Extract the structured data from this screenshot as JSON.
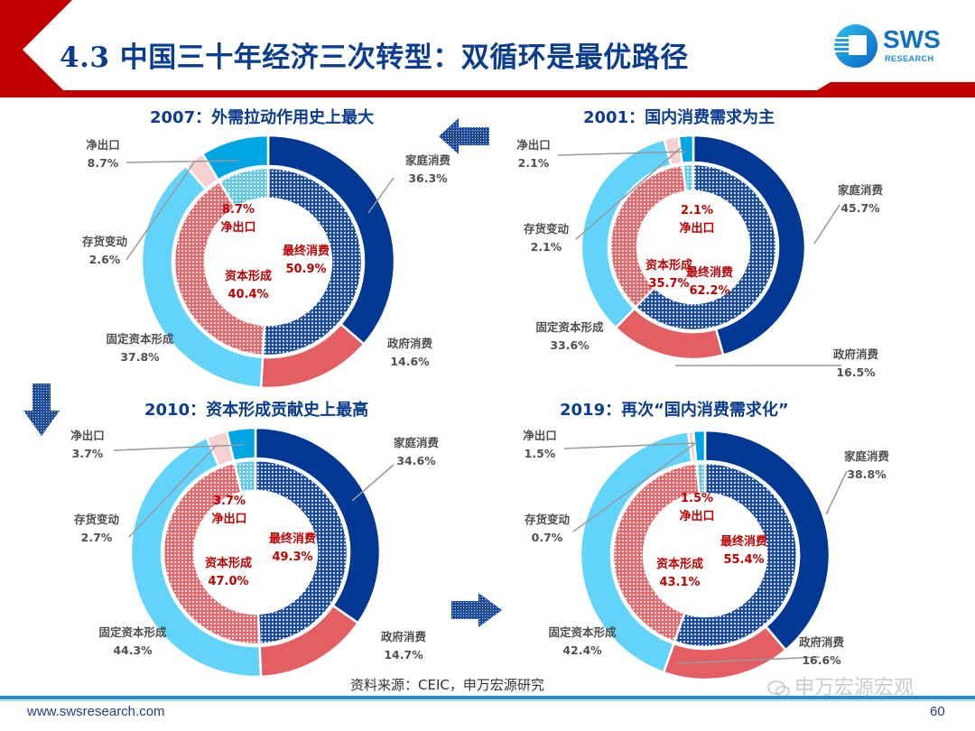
{
  "header": {
    "title": "4.3 中国三十年经济三次转型：双循环是最优路径",
    "logo_text": "SWS",
    "logo_subtext": "RESEARCH",
    "accent_color": "#c00000",
    "title_color": "#0a3d91"
  },
  "colors": {
    "household": "#003893",
    "government": "#e35f63",
    "fixed_capital": "#62d4fb",
    "inventory": "#f7d0d2",
    "net_export_outer": "#00a5e3",
    "final_consumption_pattern": "#1d4c9c",
    "capital_formation_pattern": "#e8676b",
    "net_export_inner_pattern": "#62c8f0"
  },
  "chart_data": [
    {
      "id": "c2001",
      "type": "donut",
      "title": "2001：国内消费需求为主",
      "outer": [
        {
          "name": "家庭消费",
          "value": 45.7,
          "label": "45.7%",
          "key": "household"
        },
        {
          "name": "政府消费",
          "value": 16.5,
          "label": "16.5%",
          "key": "government"
        },
        {
          "name": "固定资本形成",
          "value": 33.6,
          "label": "33.6%",
          "key": "fixed_capital"
        },
        {
          "name": "存货变动",
          "value": 2.1,
          "label": "2.1%",
          "key": "inventory"
        },
        {
          "name": "净出口",
          "value": 2.1,
          "label": "2.1%",
          "key": "net_export_outer"
        }
      ],
      "inner": [
        {
          "name": "最终消费",
          "value": 62.2,
          "label": "62.2%",
          "key": "final_consumption_pattern"
        },
        {
          "name": "资本形成",
          "value": 35.7,
          "label": "35.7%",
          "key": "capital_formation_pattern"
        },
        {
          "name": "净出口",
          "value": 2.1,
          "label": "2.1%",
          "key": "net_export_inner_pattern"
        }
      ]
    },
    {
      "id": "c2007",
      "type": "donut",
      "title": "2007：外需拉动作用史上最大",
      "outer": [
        {
          "name": "家庭消费",
          "value": 36.3,
          "label": "36.3%",
          "key": "household"
        },
        {
          "name": "政府消费",
          "value": 14.6,
          "label": "14.6%",
          "key": "government"
        },
        {
          "name": "固定资本形成",
          "value": 37.8,
          "label": "37.8%",
          "key": "fixed_capital"
        },
        {
          "name": "存货变动",
          "value": 2.6,
          "label": "2.6%",
          "key": "inventory"
        },
        {
          "name": "净出口",
          "value": 8.7,
          "label": "8.7%",
          "key": "net_export_outer"
        }
      ],
      "inner": [
        {
          "name": "最终消费",
          "value": 50.9,
          "label": "50.9%",
          "key": "final_consumption_pattern"
        },
        {
          "name": "资本形成",
          "value": 40.4,
          "label": "40.4%",
          "key": "capital_formation_pattern"
        },
        {
          "name": "净出口",
          "value": 8.7,
          "label": "8.7%",
          "key": "net_export_inner_pattern"
        }
      ]
    },
    {
      "id": "c2010",
      "type": "donut",
      "title": "2010：资本形成贡献史上最高",
      "outer": [
        {
          "name": "家庭消费",
          "value": 34.6,
          "label": "34.6%",
          "key": "household"
        },
        {
          "name": "政府消费",
          "value": 14.7,
          "label": "14.7%",
          "key": "government"
        },
        {
          "name": "固定资本形成",
          "value": 44.3,
          "label": "44.3%",
          "key": "fixed_capital"
        },
        {
          "name": "存货变动",
          "value": 2.7,
          "label": "2.7%",
          "key": "inventory"
        },
        {
          "name": "净出口",
          "value": 3.7,
          "label": "3.7%",
          "key": "net_export_outer"
        }
      ],
      "inner": [
        {
          "name": "最终消费",
          "value": 49.3,
          "label": "49.3%",
          "key": "final_consumption_pattern"
        },
        {
          "name": "资本形成",
          "value": 47.0,
          "label": "47.0%",
          "key": "capital_formation_pattern"
        },
        {
          "name": "净出口",
          "value": 3.7,
          "label": "3.7%",
          "key": "net_export_inner_pattern"
        }
      ]
    },
    {
      "id": "c2019",
      "type": "donut",
      "title": "2019：再次“国内消费需求化”",
      "outer": [
        {
          "name": "家庭消费",
          "value": 38.8,
          "label": "38.8%",
          "key": "household"
        },
        {
          "name": "政府消费",
          "value": 16.6,
          "label": "16.6%",
          "key": "government"
        },
        {
          "name": "固定资本形成",
          "value": 42.4,
          "label": "42.4%",
          "key": "fixed_capital"
        },
        {
          "name": "存货变动",
          "value": 0.7,
          "label": "0.7%",
          "key": "inventory"
        },
        {
          "name": "净出口",
          "value": 1.5,
          "label": "1.5%",
          "key": "net_export_outer"
        }
      ],
      "inner": [
        {
          "name": "最终消费",
          "value": 55.4,
          "label": "55.4%",
          "key": "final_consumption_pattern"
        },
        {
          "name": "资本形成",
          "value": 43.1,
          "label": "43.1%",
          "key": "capital_formation_pattern"
        },
        {
          "name": "净出口",
          "value": 1.5,
          "label": "1.5%",
          "key": "net_export_inner_pattern"
        }
      ]
    }
  ],
  "arrows": [
    {
      "name": "arrow-left",
      "direction": "left"
    },
    {
      "name": "arrow-down",
      "direction": "down"
    },
    {
      "name": "arrow-right",
      "direction": "right"
    }
  ],
  "footer": {
    "source": "资料来源：CEIC，申万宏源研究",
    "url": "www.swsresearch.com",
    "page_number": "60",
    "watermark": "申万宏源宏观"
  }
}
